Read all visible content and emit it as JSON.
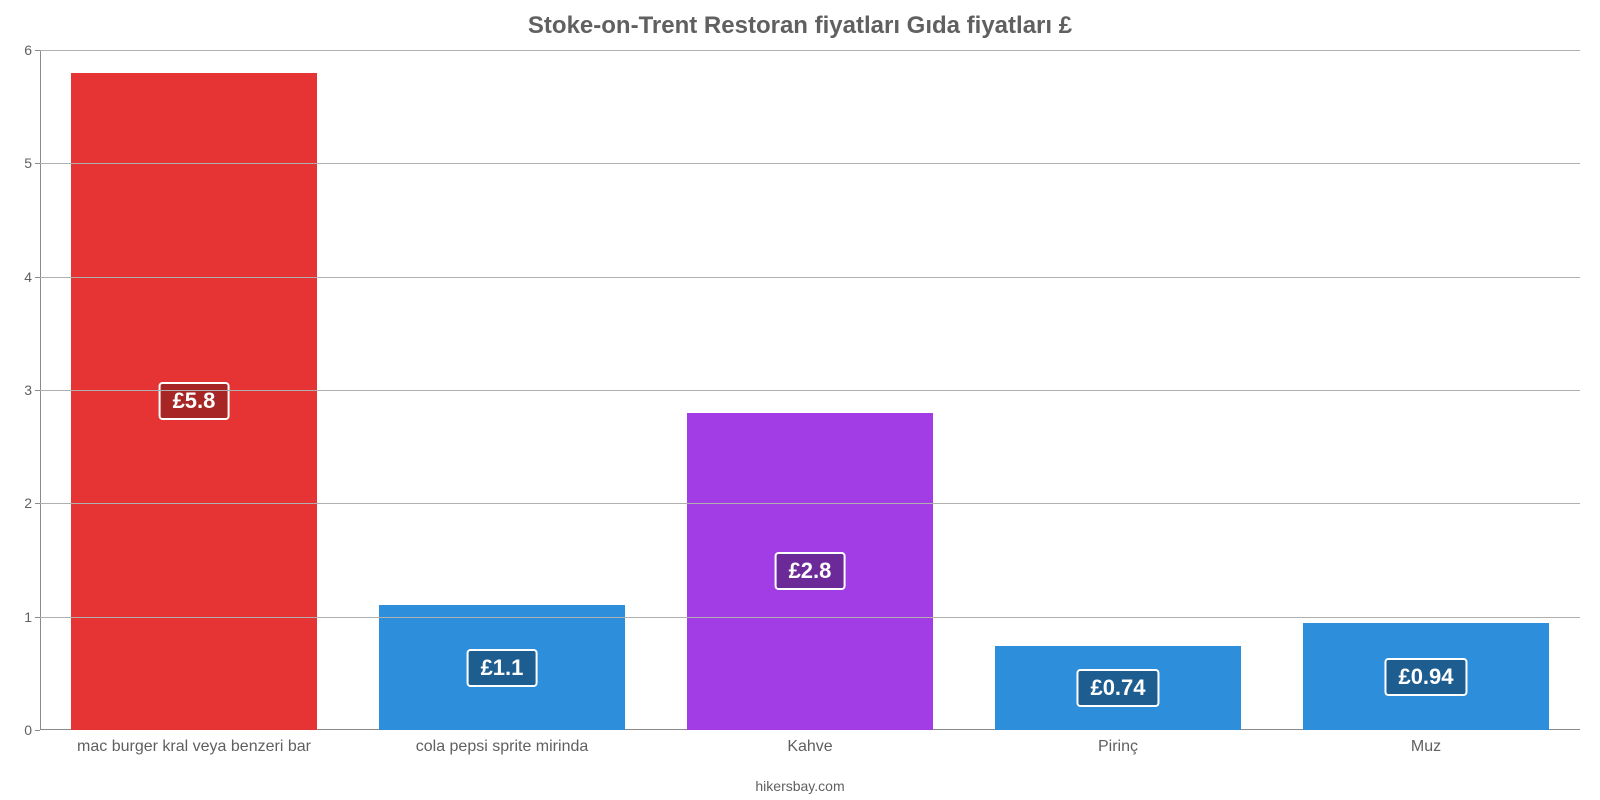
{
  "chart": {
    "type": "bar",
    "title": "Stoke-on-Trent Restoran fiyatları Gıda fiyatları £",
    "title_fontsize": 24,
    "title_color": "#606060",
    "footer": "hikersbay.com",
    "footer_fontsize": 14,
    "background_color": "#ffffff",
    "axis_color": "#8a8a8a",
    "grid_color": "#b0b0b0",
    "ticklabel_color": "#606060",
    "tick_fontsize": 14,
    "category_fontsize": 16,
    "value_label_fontsize": 22,
    "ylim": [
      0,
      6
    ],
    "ytick_step": 1,
    "bar_width_ratio": 0.8,
    "yticks": [
      {
        "v": 0,
        "label": "0"
      },
      {
        "v": 1,
        "label": "1"
      },
      {
        "v": 2,
        "label": "2"
      },
      {
        "v": 3,
        "label": "3"
      },
      {
        "v": 4,
        "label": "4"
      },
      {
        "v": 5,
        "label": "5"
      },
      {
        "v": 6,
        "label": "6"
      }
    ],
    "categories": [
      {
        "label": "mac burger kral veya benzeri bar",
        "value": 5.8,
        "value_label": "£5.8",
        "color": "#e63333",
        "badge_color": "#a82525"
      },
      {
        "label": "cola pepsi sprite mirinda",
        "value": 1.1,
        "value_label": "£1.1",
        "color": "#2d8fdb",
        "badge_color": "#1d5d8f"
      },
      {
        "label": "Kahve",
        "value": 2.8,
        "value_label": "£2.8",
        "color": "#a23de6",
        "badge_color": "#6b2a98"
      },
      {
        "label": "Pirinç",
        "value": 0.74,
        "value_label": "£0.74",
        "color": "#2d8fdb",
        "badge_color": "#1d5d8f"
      },
      {
        "label": "Muz",
        "value": 0.94,
        "value_label": "£0.94",
        "color": "#2d8fdb",
        "badge_color": "#1d5d8f"
      }
    ]
  }
}
